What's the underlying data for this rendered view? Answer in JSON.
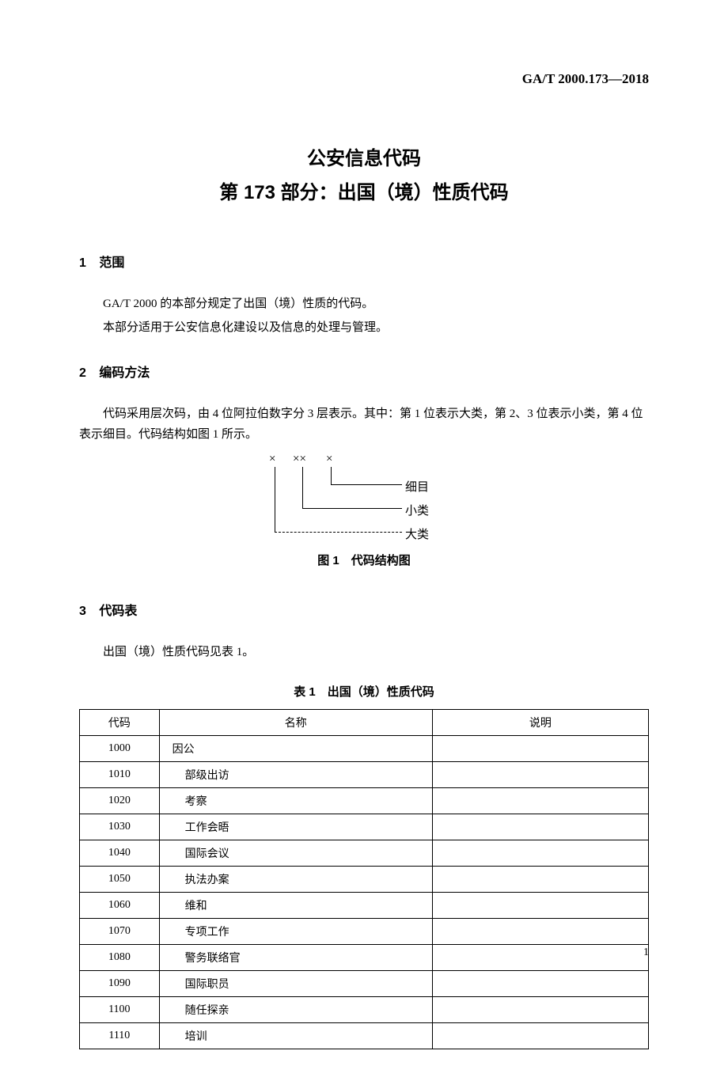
{
  "header": {
    "standard_code": "GA/T 2000.173—2018"
  },
  "title": {
    "main": "公安信息代码",
    "sub": "第 173 部分：出国（境）性质代码"
  },
  "sections": {
    "s1": {
      "num": "1",
      "heading": "范围",
      "p1": "GA/T 2000 的本部分规定了出国（境）性质的代码。",
      "p2": "本部分适用于公安信息化建设以及信息的处理与管理。"
    },
    "s2": {
      "num": "2",
      "heading": "编码方法",
      "p1": "代码采用层次码，由 4 位阿拉伯数字分 3 层表示。其中：第 1 位表示大类，第 2、3 位表示小类，第 4 位表示细目。代码结构如图 1 所示。"
    },
    "s3": {
      "num": "3",
      "heading": "代码表",
      "p1": "出国（境）性质代码见表 1。"
    }
  },
  "figure": {
    "x1": "×",
    "x2": "××",
    "x3": "×",
    "label1": "细目",
    "label2": "小类",
    "label3": "大类",
    "caption": "图 1　代码结构图"
  },
  "table": {
    "caption": "表 1　出国（境）性质代码",
    "headers": {
      "code": "代码",
      "name": "名称",
      "desc": "说明"
    },
    "rows": [
      {
        "code": "1000",
        "name": "因公",
        "desc": "",
        "indent": false
      },
      {
        "code": "1010",
        "name": "部级出访",
        "desc": "",
        "indent": true
      },
      {
        "code": "1020",
        "name": "考察",
        "desc": "",
        "indent": true
      },
      {
        "code": "1030",
        "name": "工作会晤",
        "desc": "",
        "indent": true
      },
      {
        "code": "1040",
        "name": "国际会议",
        "desc": "",
        "indent": true
      },
      {
        "code": "1050",
        "name": "执法办案",
        "desc": "",
        "indent": true
      },
      {
        "code": "1060",
        "name": "维和",
        "desc": "",
        "indent": true
      },
      {
        "code": "1070",
        "name": "专项工作",
        "desc": "",
        "indent": true
      },
      {
        "code": "1080",
        "name": "警务联络官",
        "desc": "",
        "indent": true
      },
      {
        "code": "1090",
        "name": "国际职员",
        "desc": "",
        "indent": true
      },
      {
        "code": "1100",
        "name": "随任探亲",
        "desc": "",
        "indent": true
      },
      {
        "code": "1110",
        "name": "培训",
        "desc": "",
        "indent": true
      }
    ]
  },
  "page_number": "1",
  "style": {
    "background_color": "#ffffff",
    "text_color": "#000000",
    "border_color": "#000000",
    "title_fontsize": 24,
    "heading_fontsize": 16,
    "body_fontsize": 15,
    "table_fontsize": 14
  }
}
